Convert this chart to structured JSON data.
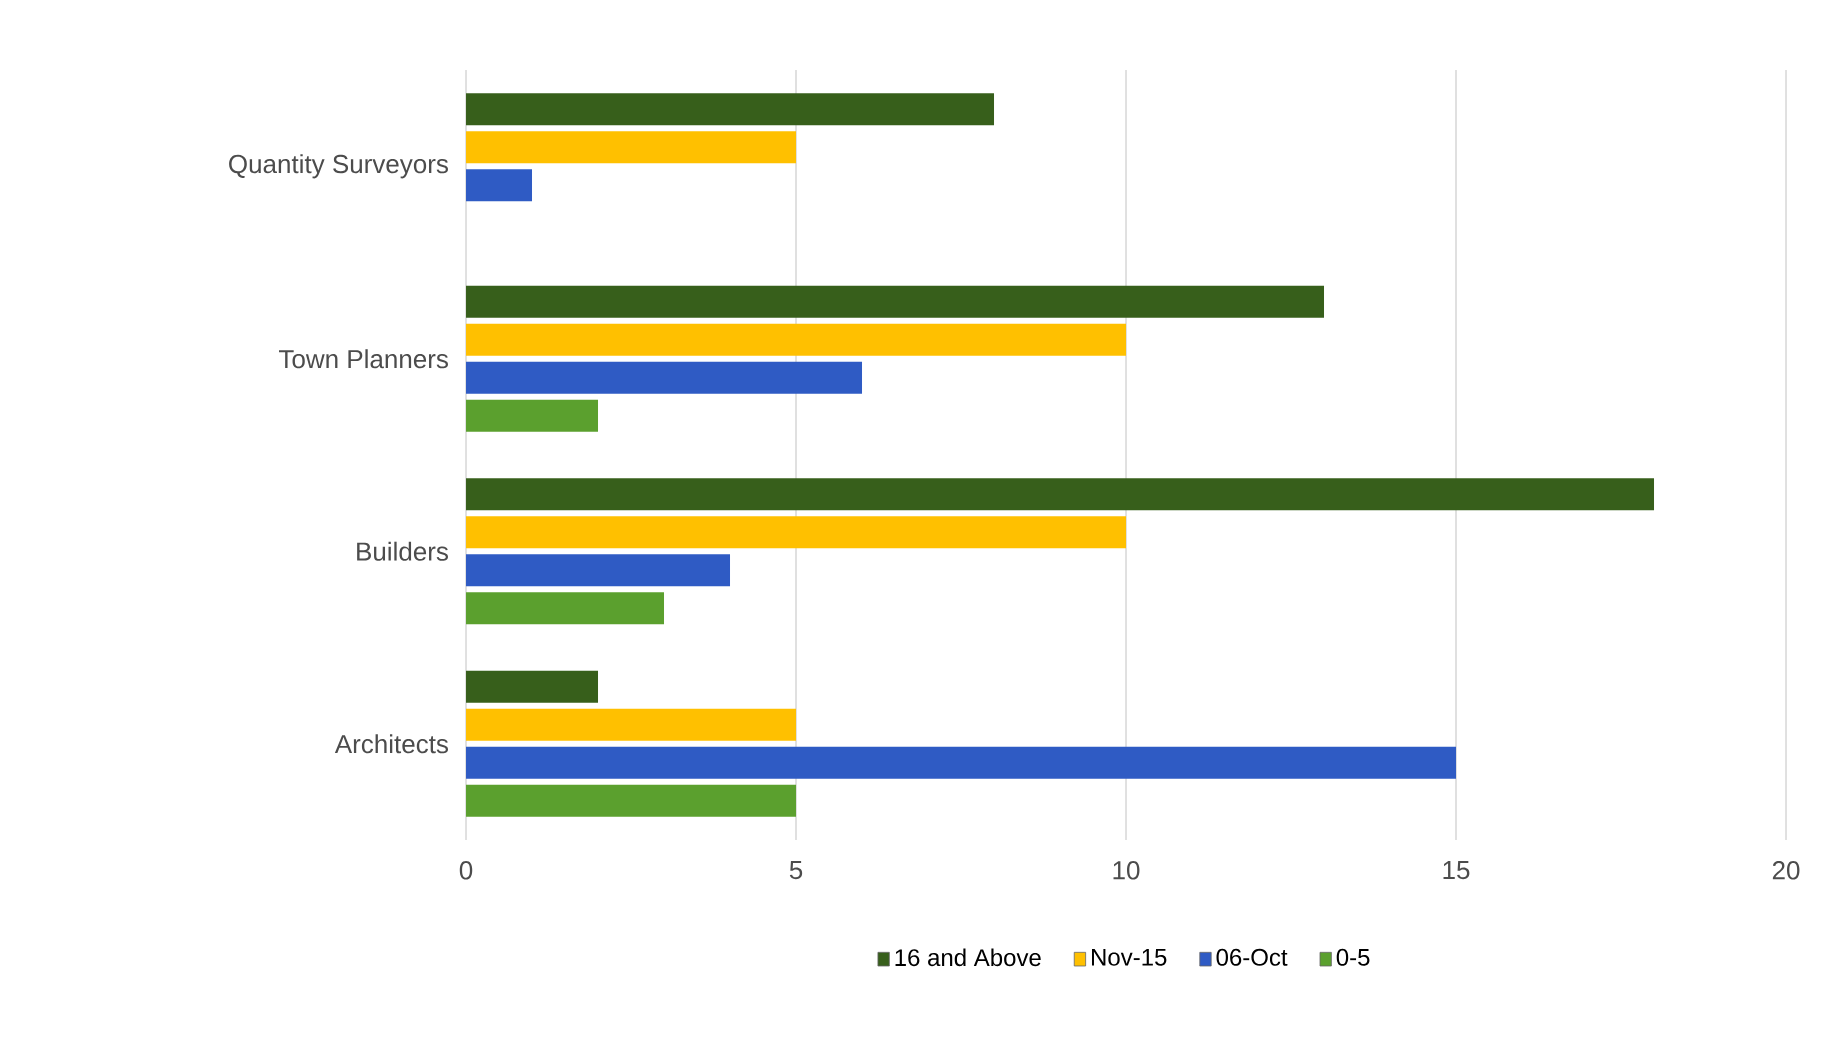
{
  "chart_data": {
    "type": "bar",
    "orientation": "horizontal",
    "categories": [
      "Quantity Surveyors",
      "Town Planners",
      "Builders",
      "Architects"
    ],
    "series": [
      {
        "name": "16 and Above",
        "color": "#375f1b",
        "values": [
          8,
          13,
          18,
          2
        ]
      },
      {
        "name": "Nov-15",
        "color": "#ffc000",
        "values": [
          5,
          10,
          10,
          5
        ]
      },
      {
        "name": "06-Oct",
        "color": "#2f5bc4",
        "values": [
          1,
          6,
          4,
          15
        ]
      },
      {
        "name": "0-5",
        "color": "#5ba02e",
        "values": [
          0,
          2,
          3,
          5
        ]
      }
    ],
    "xlim": [
      0,
      20
    ],
    "xticks": [
      0,
      5,
      10,
      15,
      20
    ],
    "grid": "x",
    "legend": "bottom"
  }
}
